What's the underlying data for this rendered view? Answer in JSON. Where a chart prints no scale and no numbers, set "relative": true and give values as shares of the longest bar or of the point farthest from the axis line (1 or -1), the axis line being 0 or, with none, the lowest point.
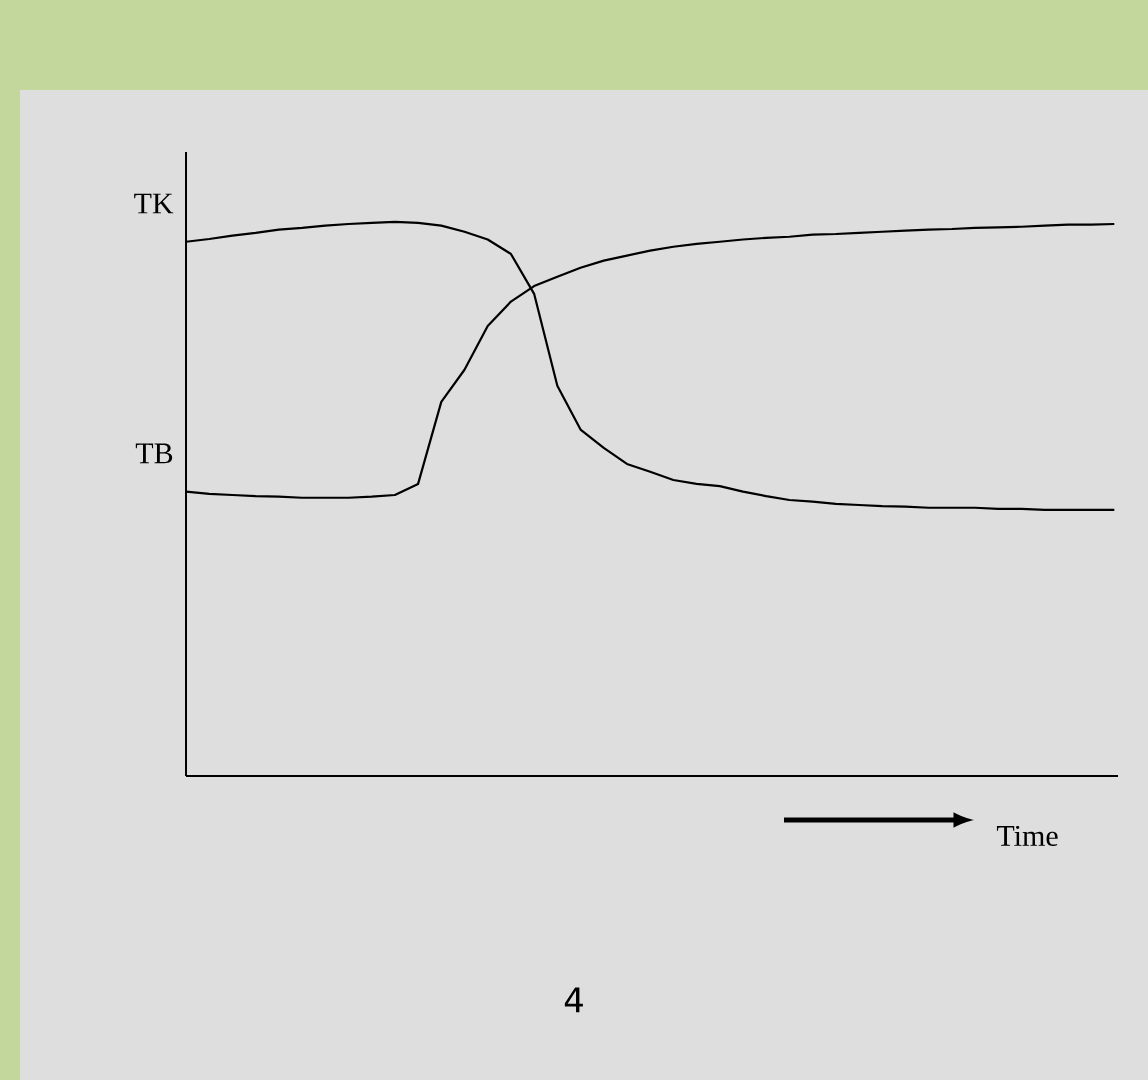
{
  "chart_data": {
    "type": "line",
    "relative": true,
    "xlabel": "Time",
    "categories": [
      null,
      null,
      null,
      null,
      null,
      null,
      null,
      null,
      null,
      null,
      null,
      null,
      null,
      null,
      null,
      null,
      null,
      null,
      null,
      null,
      null,
      null,
      null,
      null,
      null,
      null,
      null,
      null,
      null,
      null,
      null,
      null,
      null,
      null,
      null,
      null,
      null,
      null,
      null,
      null,
      null
    ],
    "series": [
      {
        "color": "#000000",
        "values": [
          0.964,
          0.969,
          0.975,
          0.98,
          0.986,
          0.989,
          0.993,
          0.996,
          0.998,
          1,
          0.998,
          0.993,
          0.982,
          0.968,
          0.942,
          0.87,
          0.704,
          0.625,
          0.592,
          0.563,
          0.549,
          0.534,
          0.527,
          0.523,
          0.513,
          0.505,
          0.498,
          0.495,
          0.491,
          0.489,
          0.487,
          0.486,
          0.484,
          0.484,
          0.484,
          0.482,
          0.482,
          0.48,
          0.48,
          0.48,
          0.48
        ]
      },
      {
        "color": "#000000",
        "values": [
          0.513,
          0.509,
          0.507,
          0.505,
          0.504,
          0.502,
          0.502,
          0.502,
          0.504,
          0.507,
          0.527,
          0.675,
          0.733,
          0.812,
          0.856,
          0.884,
          0.901,
          0.917,
          0.93,
          0.939,
          0.948,
          0.955,
          0.96,
          0.964,
          0.968,
          0.971,
          0.973,
          0.977,
          0.978,
          0.98,
          0.982,
          0.984,
          0.986,
          0.987,
          0.989,
          0.99,
          0.991,
          0.993,
          0.995,
          0.995,
          0.996
        ]
      }
    ],
    "annotations": [
      "TK",
      "TB",
      "4"
    ],
    "marker": "none",
    "line_style": "solid"
  }
}
